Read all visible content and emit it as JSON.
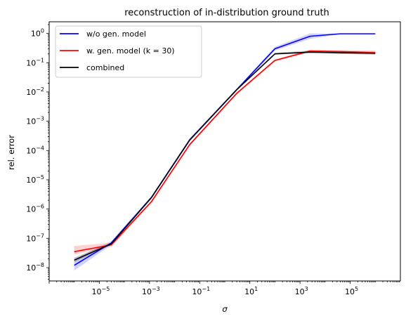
{
  "chart_data": {
    "type": "line",
    "title": "reconstruction of in-distribution ground truth",
    "xlabel": "σ",
    "ylabel": "rel. error",
    "xscale": "log",
    "yscale": "log",
    "xlim": [
      1e-07,
      10000000.0
    ],
    "ylim": [
      3.5e-09,
      2.5
    ],
    "grid": false,
    "legend_position": "top-left",
    "x_ticks": [
      {
        "value": 1e-05,
        "mant": "10",
        "exp": "−5"
      },
      {
        "value": 0.001,
        "mant": "10",
        "exp": "−3"
      },
      {
        "value": 0.1,
        "mant": "10",
        "exp": "−1"
      },
      {
        "value": 10,
        "mant": "10",
        "exp": "1"
      },
      {
        "value": 1000,
        "mant": "10",
        "exp": "3"
      },
      {
        "value": 100000,
        "mant": "10",
        "exp": "5"
      }
    ],
    "y_ticks": [
      {
        "value": 1,
        "mant": "10",
        "exp": "0"
      },
      {
        "value": 0.1,
        "mant": "10",
        "exp": "−1"
      },
      {
        "value": 0.01,
        "mant": "10",
        "exp": "−2"
      },
      {
        "value": 0.001,
        "mant": "10",
        "exp": "−3"
      },
      {
        "value": 0.0001,
        "mant": "10",
        "exp": "−4"
      },
      {
        "value": 1e-05,
        "mant": "10",
        "exp": "−5"
      },
      {
        "value": 1e-06,
        "mant": "10",
        "exp": "−6"
      },
      {
        "value": 1e-07,
        "mant": "10",
        "exp": "−7"
      },
      {
        "value": 1e-08,
        "mant": "10",
        "exp": "−8"
      }
    ],
    "x": [
      1e-06,
      3e-05,
      0.0012,
      0.04,
      3,
      100,
      2500,
      40000,
      1000000
    ],
    "series": [
      {
        "name": "w/o gen. model",
        "color": "#0000ff",
        "values": [
          1.2e-08,
          7e-08,
          2.5e-06,
          0.00023,
          0.012,
          0.3,
          0.8,
          0.97,
          0.97
        ],
        "band_low": [
          8e-09,
          6e-08,
          2.2e-06,
          0.0002,
          0.011,
          0.26,
          0.65,
          0.95,
          0.95
        ],
        "band_high": [
          2e-08,
          8e-08,
          2.8e-06,
          0.00026,
          0.013,
          0.35,
          1.0,
          1.0,
          1.0
        ]
      },
      {
        "name": "w. gen. model (k = 30)",
        "color": "#ff0000",
        "values": [
          3.5e-08,
          6e-08,
          1.8e-06,
          0.00016,
          0.009,
          0.12,
          0.25,
          0.24,
          0.22
        ],
        "band_low": [
          2.8e-08,
          5.2e-08,
          1.6e-06,
          0.000145,
          0.0082,
          0.11,
          0.23,
          0.2,
          0.19
        ],
        "band_high": [
          5.5e-08,
          7e-08,
          2e-06,
          0.000175,
          0.0098,
          0.13,
          0.28,
          0.27,
          0.26
        ]
      },
      {
        "name": "combined",
        "color": "#000000",
        "values": [
          1.8e-08,
          6.5e-08,
          2.5e-06,
          0.00023,
          0.012,
          0.2,
          0.23,
          0.22,
          0.21
        ],
        "band_low": [
          1.5e-08,
          6e-08,
          2.3e-06,
          0.00021,
          0.011,
          0.19,
          0.21,
          0.2,
          0.19
        ],
        "band_high": [
          2.2e-08,
          7e-08,
          2.7e-06,
          0.00025,
          0.013,
          0.22,
          0.26,
          0.25,
          0.24
        ]
      }
    ]
  }
}
